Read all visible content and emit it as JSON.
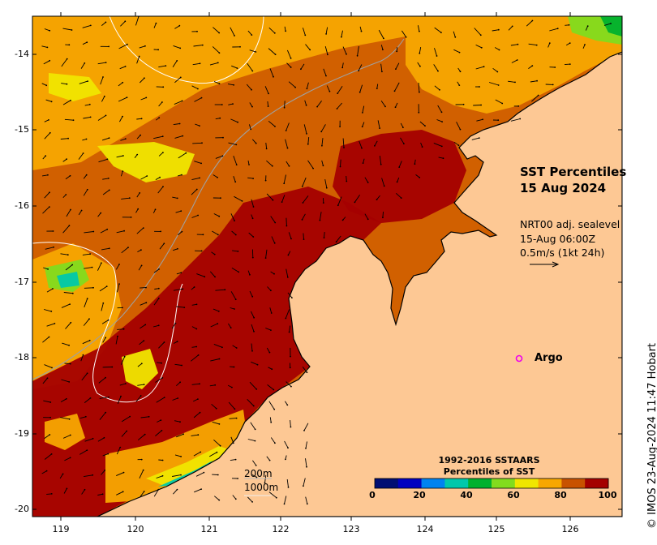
{
  "map": {
    "title_line1": "SST Percentiles",
    "title_line2": "15 Aug 2024",
    "wind_line1": "NRT00 adj. sealevel",
    "wind_line2": "15-Aug 06:00Z",
    "wind_line3": "0.5m/s (1kt 24h)",
    "argo_label": "Argo",
    "contour_200": "200m",
    "contour_1000": "1000m",
    "credit": "© IMOS 23-Aug-2024 11:47 Hobart",
    "lat_ticks": [
      "-14",
      "-15",
      "-16",
      "-17",
      "-18",
      "-19",
      "-20"
    ],
    "lon_ticks": [
      "119",
      "120",
      "121",
      "122",
      "123",
      "124",
      "125",
      "126"
    ]
  },
  "legend": {
    "title_line1": "1992-2016 SSTAARS",
    "title_line2": "Percentiles of SST",
    "tick_labels": [
      "0",
      "20",
      "40",
      "60",
      "80",
      "100"
    ],
    "colors": [
      "#000e73",
      "#0000c0",
      "#0083f0",
      "#00c8ab",
      "#00b12e",
      "#82dc1e",
      "#f0e600",
      "#f7a701",
      "#c85200",
      "#a40000"
    ]
  },
  "colors": {
    "land": "#fdc894",
    "argo_marker": "#ee00ee",
    "contour": "#ffffff",
    "shelf_contour": "#a0a0a0"
  }
}
